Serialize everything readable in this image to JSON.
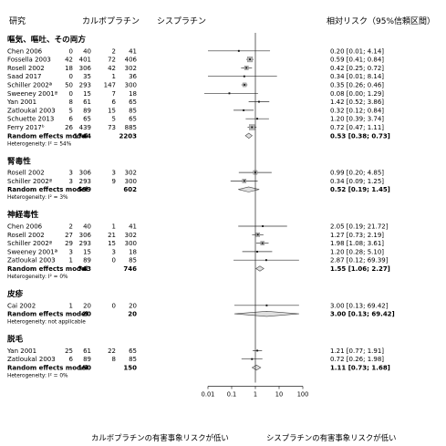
{
  "chart_data": {
    "type": "forest",
    "headers": {
      "study": "研究",
      "carboplatin": "カルボプラチン",
      "cisplatin": "シスプラチン",
      "rr": "相対リスク（95%信頼区間）"
    },
    "x_scale": "log",
    "x_ticks": [
      "0.01",
      "0.1",
      "1",
      "10",
      "100"
    ],
    "x_tick_values": [
      0.01,
      0.1,
      1,
      10,
      100
    ],
    "footer_left": "カルボプラチンの有害事象リスクが低い",
    "footer_right": "シスプラチンの有害事象リスクが低い",
    "sections": [
      {
        "title": "嘔気、嘔吐、その両方",
        "studies": [
          {
            "name": "Chen 2006",
            "e1": "0",
            "n1": "40",
            "e2": "2",
            "n2": "41",
            "rr": 0.2,
            "lo": 0.01,
            "hi": 4.14,
            "text": "0.20  [0.01; 4.14]"
          },
          {
            "name": "Fossella 2003",
            "e1": "42",
            "n1": "401",
            "e2": "72",
            "n2": "406",
            "rr": 0.59,
            "lo": 0.41,
            "hi": 0.84,
            "text": "0.59  [0.41; 0.84]"
          },
          {
            "name": "Rosell 2002",
            "e1": "18",
            "n1": "306",
            "e2": "42",
            "n2": "302",
            "rr": 0.42,
            "lo": 0.25,
            "hi": 0.72,
            "text": "0.42  [0.25; 0.72]"
          },
          {
            "name": "Saad 2017",
            "e1": "0",
            "n1": "35",
            "e2": "1",
            "n2": "36",
            "rr": 0.34,
            "lo": 0.01,
            "hi": 8.14,
            "text": "0.34  [0.01; 8.14]"
          },
          {
            "name": "Schiller 2002ª",
            "e1": "50",
            "n1": "293",
            "e2": "147",
            "n2": "300",
            "rr": 0.35,
            "lo": 0.26,
            "hi": 0.46,
            "text": "0.35  [0.26; 0.46]"
          },
          {
            "name": "Sweeney 2001ª",
            "e1": "0",
            "n1": "15",
            "e2": "7",
            "n2": "18",
            "rr": 0.08,
            "lo": 0.0,
            "hi": 1.29,
            "text": "0.08  [0.00; 1.29]"
          },
          {
            "name": "Yan 2001",
            "e1": "8",
            "n1": "61",
            "e2": "6",
            "n2": "65",
            "rr": 1.42,
            "lo": 0.52,
            "hi": 3.86,
            "text": "1.42  [0.52; 3.86]"
          },
          {
            "name": "Zatloukal 2003",
            "e1": "5",
            "n1": "89",
            "e2": "15",
            "n2": "85",
            "rr": 0.32,
            "lo": 0.12,
            "hi": 0.84,
            "text": "0.32  [0.12; 0.84]"
          },
          {
            "name": "Schuette 2013",
            "e1": "6",
            "n1": "65",
            "e2": "5",
            "n2": "65",
            "rr": 1.2,
            "lo": 0.39,
            "hi": 3.74,
            "text": "1.20  [0.39; 3.74]"
          },
          {
            "name": "Ferry 2017ᵇ",
            "e1": "26",
            "n1": "439",
            "e2": "73",
            "n2": "885",
            "rr": 0.72,
            "lo": 0.47,
            "hi": 1.11,
            "text": "0.72  [0.47; 1.11]"
          }
        ],
        "summary": {
          "name": "Random effects model",
          "n1": "1744",
          "n2": "2203",
          "rr": 0.53,
          "lo": 0.38,
          "hi": 0.73,
          "text": "0.53  [0.38; 0.73]"
        },
        "heterogeneity": "Heterogeneity: I² = 54%"
      },
      {
        "title": "腎毒性",
        "studies": [
          {
            "name": "Rosell 2002",
            "e1": "3",
            "n1": "306",
            "e2": "3",
            "n2": "302",
            "rr": 0.99,
            "lo": 0.2,
            "hi": 4.85,
            "text": "0.99  [0.20; 4.85]"
          },
          {
            "name": "Schiller 2002ª",
            "e1": "3",
            "n1": "293",
            "e2": "9",
            "n2": "300",
            "rr": 0.34,
            "lo": 0.09,
            "hi": 1.25,
            "text": "0.34  [0.09; 1.25]"
          }
        ],
        "summary": {
          "name": "Random effects model",
          "n1": "599",
          "n2": "602",
          "rr": 0.52,
          "lo": 0.19,
          "hi": 1.45,
          "text": "0.52  [0.19; 1.45]"
        },
        "heterogeneity": "Heterogeneity: I² = 3%"
      },
      {
        "title": "神経毒性",
        "studies": [
          {
            "name": "Chen 2006",
            "e1": "2",
            "n1": "40",
            "e2": "1",
            "n2": "41",
            "rr": 2.05,
            "lo": 0.19,
            "hi": 21.72,
            "text": "2.05  [0.19; 21.72]"
          },
          {
            "name": "Rosell 2002",
            "e1": "27",
            "n1": "306",
            "e2": "21",
            "n2": "302",
            "rr": 1.27,
            "lo": 0.73,
            "hi": 2.19,
            "text": "1.27  [0.73; 2.19]"
          },
          {
            "name": "Schiller 2002ª",
            "e1": "29",
            "n1": "293",
            "e2": "15",
            "n2": "300",
            "rr": 1.98,
            "lo": 1.08,
            "hi": 3.61,
            "text": "1.98  [1.08; 3.61]"
          },
          {
            "name": "Sweeney 2001ª",
            "e1": "3",
            "n1": "15",
            "e2": "3",
            "n2": "18",
            "rr": 1.2,
            "lo": 0.28,
            "hi": 5.1,
            "text": "1.20  [0.28; 5.10]"
          },
          {
            "name": "Zatloukal 2003",
            "e1": "1",
            "n1": "89",
            "e2": "0",
            "n2": "85",
            "rr": 2.87,
            "lo": 0.12,
            "hi": 69.39,
            "text": "2.87  [0.12; 69.39]"
          }
        ],
        "summary": {
          "name": "Random effects model",
          "n1": "743",
          "n2": "746",
          "rr": 1.55,
          "lo": 1.06,
          "hi": 2.27,
          "text": "1.55  [1.06; 2.27]"
        },
        "heterogeneity": "Heterogeneity: I² = 0%"
      },
      {
        "title": "皮疹",
        "studies": [
          {
            "name": "Cai 2002",
            "e1": "1",
            "n1": "20",
            "e2": "0",
            "n2": "20",
            "rr": 3.0,
            "lo": 0.13,
            "hi": 69.42,
            "text": "3.00  [0.13; 69.42]"
          }
        ],
        "summary": {
          "name": "Random effects model",
          "n1": "20",
          "n2": "20",
          "rr": 3.0,
          "lo": 0.13,
          "hi": 69.42,
          "text": "3.00  [0.13; 69.42]"
        },
        "heterogeneity": "Heterogeneity: not applicable"
      },
      {
        "title": "脱毛",
        "studies": [
          {
            "name": "Yan 2001",
            "e1": "25",
            "n1": "61",
            "e2": "22",
            "n2": "65",
            "rr": 1.21,
            "lo": 0.77,
            "hi": 1.91,
            "text": "1.21  [0.77; 1.91]"
          },
          {
            "name": "Zatloukal 2003",
            "e1": "6",
            "n1": "89",
            "e2": "8",
            "n2": "85",
            "rr": 0.72,
            "lo": 0.26,
            "hi": 1.98,
            "text": "0.72  [0.26; 1.98]"
          }
        ],
        "summary": {
          "name": "Random effects model",
          "n1": "150",
          "n2": "150",
          "rr": 1.11,
          "lo": 0.73,
          "hi": 1.68,
          "text": "1.11  [0.73; 1.68]"
        },
        "heterogeneity": "Heterogeneity: I² = 0%"
      }
    ]
  }
}
